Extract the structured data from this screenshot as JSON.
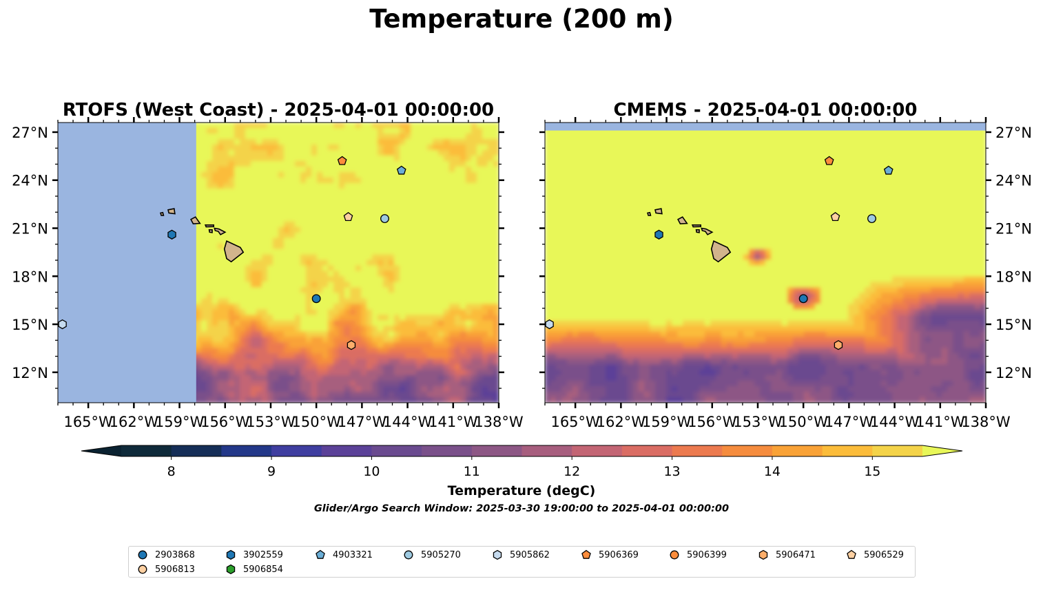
{
  "figure": {
    "title": "Temperature (200 m)",
    "subtitle": "Glider/Argo Search Window: 2025-03-30 19:00:00 to 2025-04-01 00:00:00",
    "colorbar": {
      "label": "Temperature (degC)",
      "ticks": [
        "8",
        "9",
        "10",
        "11",
        "12",
        "13",
        "14",
        "15"
      ],
      "min": 7.5,
      "max": 15.5,
      "step": 0.5,
      "colors": [
        "#0f2a3a",
        "#152e57",
        "#233889",
        "#3f3ea0",
        "#5b4198",
        "#6a4a8f",
        "#7a508a",
        "#8d5785",
        "#a75e7e",
        "#c36574",
        "#da6d64",
        "#ec7a4f",
        "#f58c3e",
        "#f9a237",
        "#fbbc3a",
        "#f4d349",
        "#e8f759"
      ],
      "under_color": "#0a2231",
      "over_color": "#e8f759"
    },
    "land_color": "#d2b48c",
    "nodata_color": "#9ab5e0"
  },
  "chart_data": [
    {
      "type": "heatmap",
      "title": "RTOFS (West Coast) - 2025-04-01 00:00:00",
      "xlabel": "",
      "ylabel": "",
      "x_ticks": [
        "165°W",
        "162°W",
        "159°W",
        "156°W",
        "153°W",
        "150°W",
        "147°W",
        "144°W",
        "141°W",
        "138°W"
      ],
      "y_ticks": [
        "12°N",
        "15°N",
        "18°N",
        "21°N",
        "24°N",
        "27°N"
      ],
      "xlim": [
        -167.0,
        -138.0
      ],
      "ylim": [
        10.1,
        27.6
      ],
      "grid": false,
      "nodata_region_west_of_lon": -157.9,
      "markers": [
        {
          "id": "2903868",
          "lon": -150.0,
          "lat": 16.6
        },
        {
          "id": "3902559",
          "lon": -159.5,
          "lat": 20.6
        },
        {
          "id": "4903321",
          "lon": -144.4,
          "lat": 24.6
        },
        {
          "id": "5905270",
          "lon": -145.5,
          "lat": 21.6
        },
        {
          "id": "5905862",
          "lon": -166.7,
          "lat": 15.0
        },
        {
          "id": "5906369",
          "lon": -148.3,
          "lat": 25.2
        },
        {
          "id": "5906471",
          "lon": -147.7,
          "lat": 13.7
        },
        {
          "id": "5906529",
          "lon": -147.9,
          "lat": 21.7
        }
      ]
    },
    {
      "type": "heatmap",
      "title": "CMEMS - 2025-04-01 00:00:00",
      "xlabel": "",
      "ylabel": "",
      "x_ticks": [
        "165°W",
        "162°W",
        "159°W",
        "156°W",
        "153°W",
        "150°W",
        "147°W",
        "144°W",
        "141°W",
        "138°W"
      ],
      "y_ticks": [
        "12°N",
        "15°N",
        "18°N",
        "21°N",
        "24°N",
        "27°N"
      ],
      "xlim": [
        -167.0,
        -138.0
      ],
      "ylim": [
        10.1,
        27.6
      ],
      "grid": false,
      "nodata_band_north_of_lat": 27.1,
      "markers": [
        {
          "id": "2903868",
          "lon": -150.0,
          "lat": 16.6
        },
        {
          "id": "3902559",
          "lon": -159.5,
          "lat": 20.6
        },
        {
          "id": "4903321",
          "lon": -144.4,
          "lat": 24.6
        },
        {
          "id": "5905270",
          "lon": -145.5,
          "lat": 21.6
        },
        {
          "id": "5905862",
          "lon": -166.7,
          "lat": 15.0
        },
        {
          "id": "5906369",
          "lon": -148.3,
          "lat": 25.2
        },
        {
          "id": "5906471",
          "lon": -147.7,
          "lat": 13.7
        },
        {
          "id": "5906529",
          "lon": -147.9,
          "lat": 21.7
        }
      ]
    }
  ],
  "legend": {
    "placement": "bottom-center",
    "columns": 9,
    "items": [
      {
        "id": "2903868",
        "shape": "circle",
        "color": "#1f77b4"
      },
      {
        "id": "3902559",
        "shape": "hexagon",
        "color": "#1f77b4"
      },
      {
        "id": "4903321",
        "shape": "pentagon",
        "color": "#6baed6"
      },
      {
        "id": "5905270",
        "shape": "circle",
        "color": "#9ecae1"
      },
      {
        "id": "5905862",
        "shape": "hexagon",
        "color": "#c6dbef"
      },
      {
        "id": "5906369",
        "shape": "pentagon",
        "color": "#fd8d3c"
      },
      {
        "id": "5906399",
        "shape": "circle",
        "color": "#fd8d3c"
      },
      {
        "id": "5906471",
        "shape": "hexagon",
        "color": "#fdae6b"
      },
      {
        "id": "5906529",
        "shape": "pentagon",
        "color": "#fdd0a2"
      },
      {
        "id": "5906813",
        "shape": "circle",
        "color": "#fdd0a2"
      },
      {
        "id": "5906854",
        "shape": "hexagon",
        "color": "#2ca02c"
      }
    ]
  }
}
